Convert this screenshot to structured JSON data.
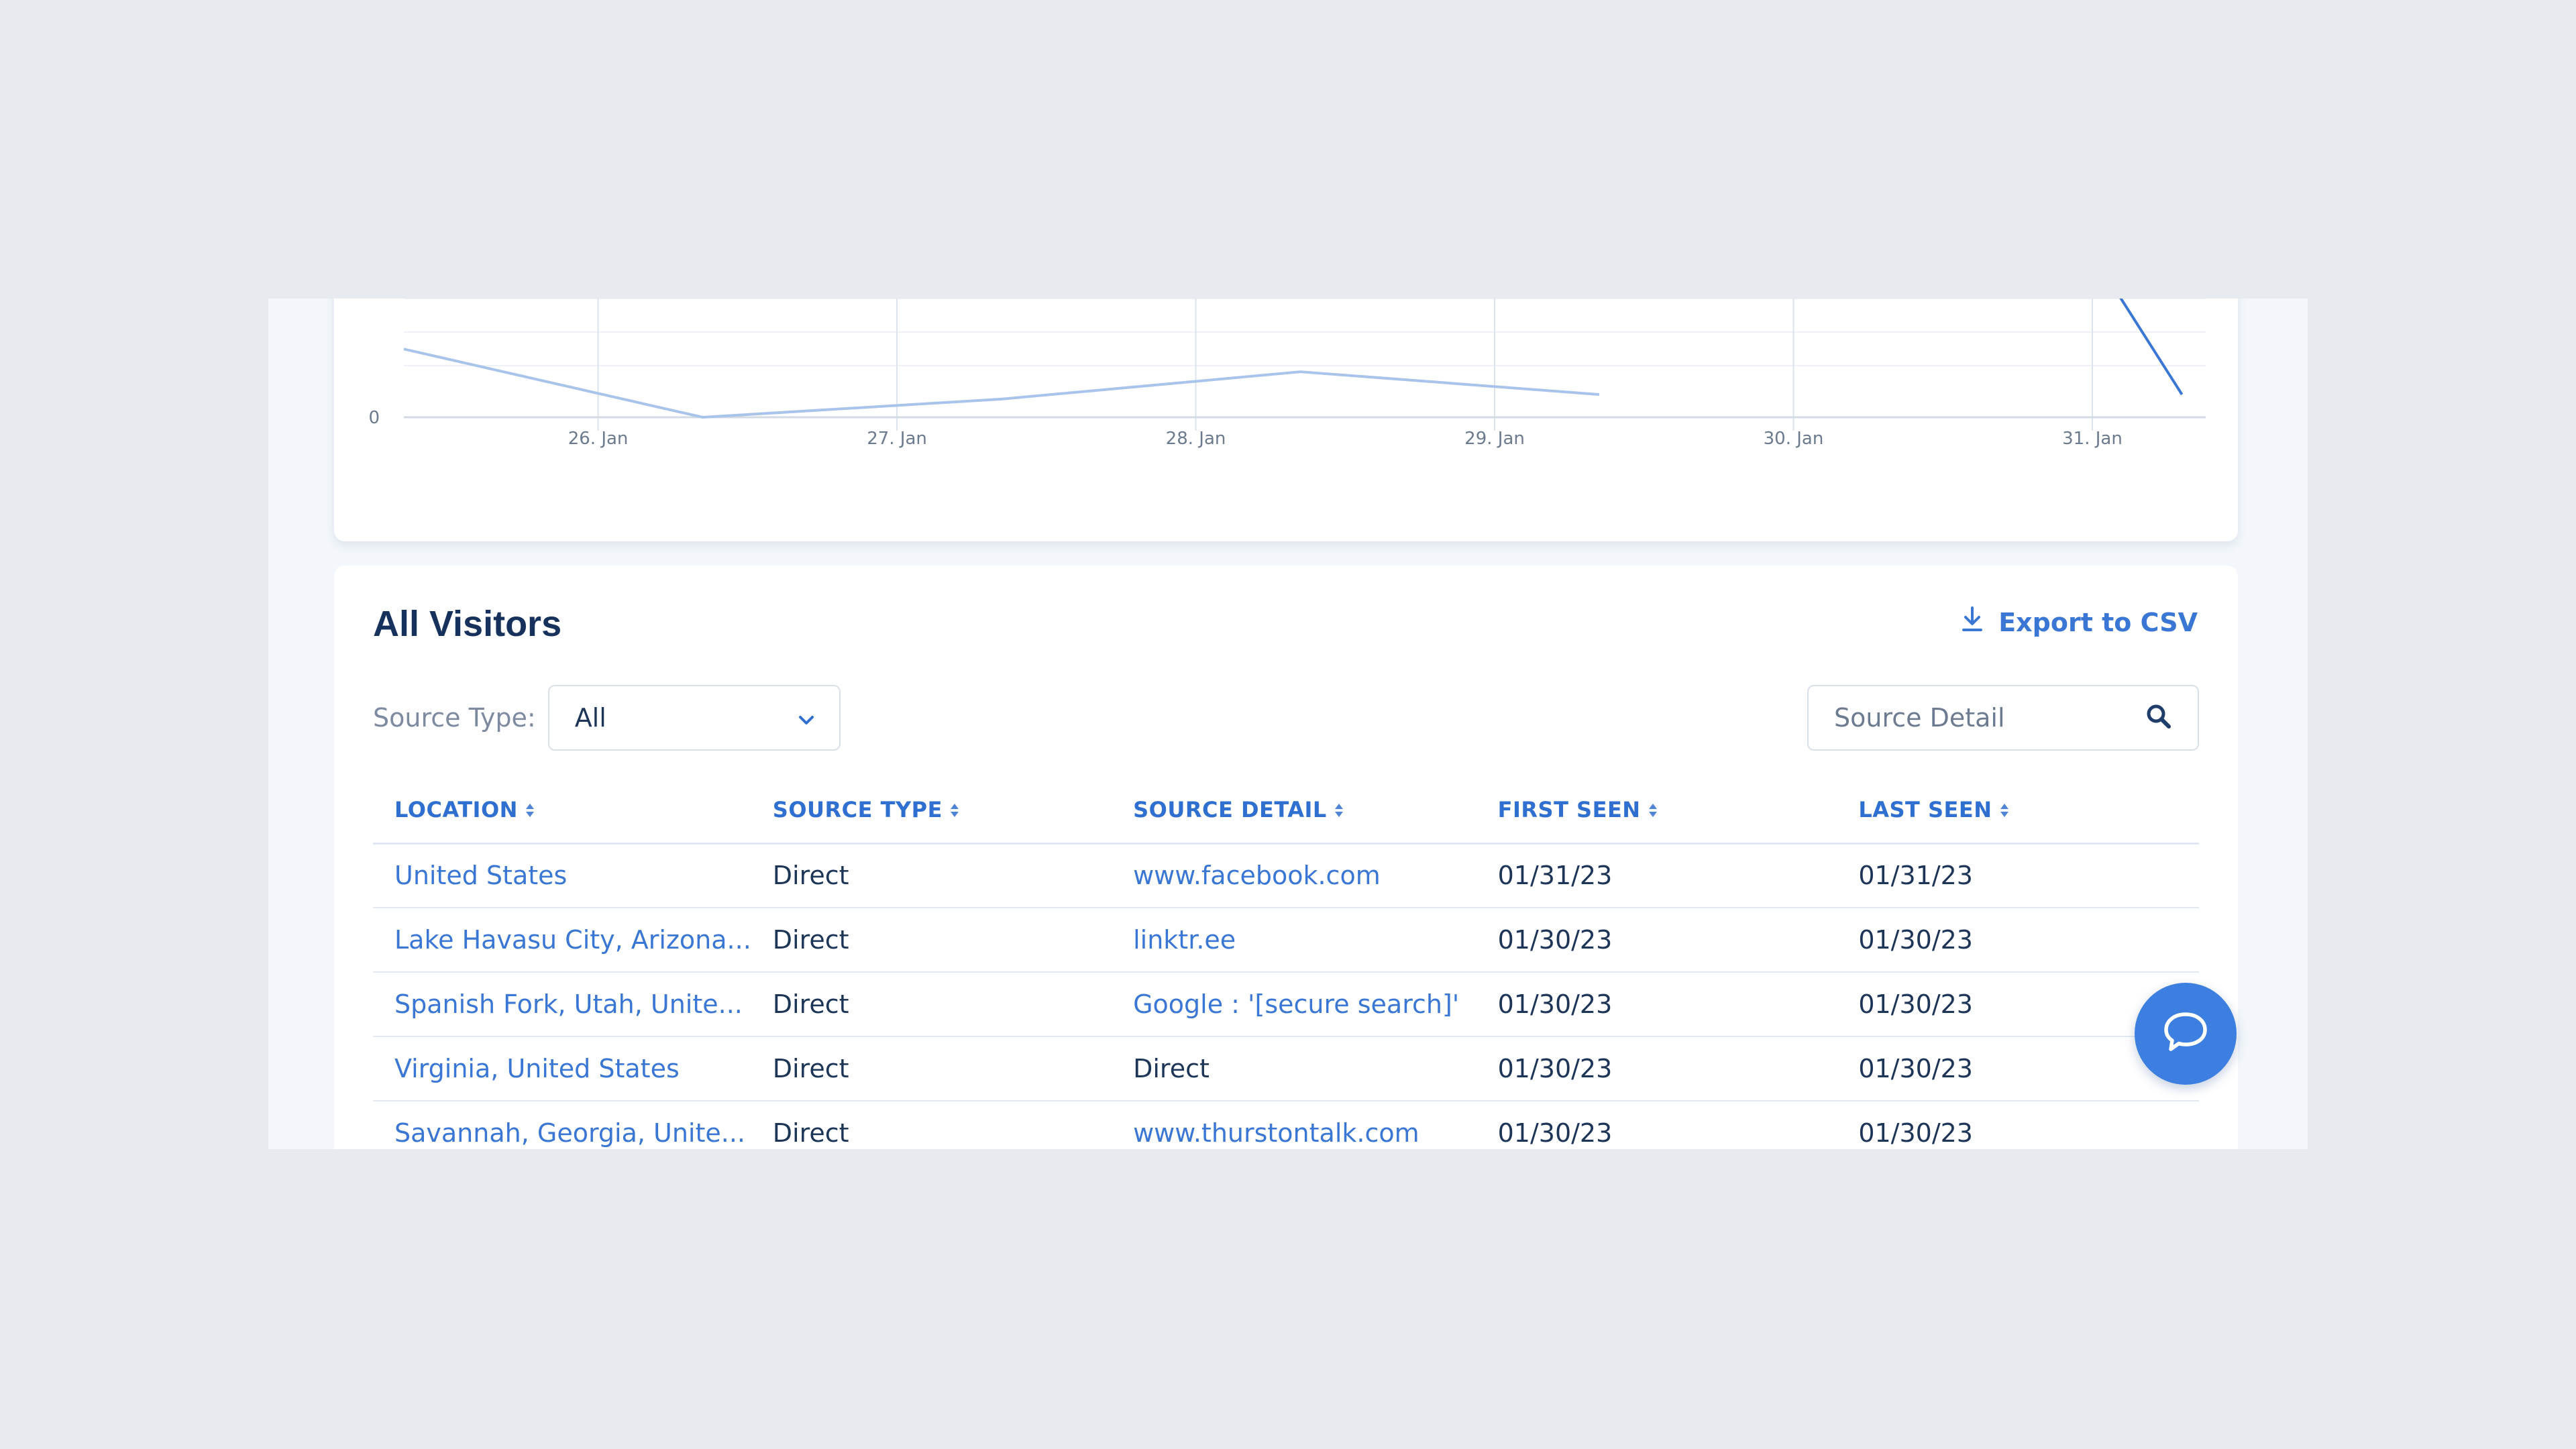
{
  "chart_data": {
    "type": "line",
    "categories": [
      "26. Jan",
      "27. Jan",
      "28. Jan",
      "29. Jan",
      "30. Jan",
      "31. Jan"
    ],
    "y_tick_labels": [
      "0"
    ],
    "grid": true,
    "series": [
      {
        "color": "#a9c4ea",
        "points": [
          [
            25.35,
            0.75
          ],
          [
            26.35,
            0.0
          ],
          [
            27.35,
            0.2
          ],
          [
            28.35,
            0.5
          ],
          [
            29.35,
            0.25
          ]
        ]
      },
      {
        "color": "#3a77d4",
        "points": [
          [
            31.0,
            1.8
          ],
          [
            31.3,
            0.25
          ]
        ]
      }
    ],
    "x_range": [
      25.35,
      31.33
    ],
    "y_range": [
      0,
      1.6
    ]
  },
  "table_card": {
    "title": "All Visitors",
    "export_label": "Export to CSV",
    "filter_label": "Source Type:",
    "filter_value": "All",
    "search_placeholder": "Source Detail"
  },
  "table": {
    "headers": [
      "LOCATION",
      "SOURCE TYPE",
      "SOURCE DETAIL",
      "FIRST SEEN",
      "LAST SEEN"
    ],
    "rows": [
      [
        "United States",
        "Direct",
        "www.facebook.com",
        "01/31/23",
        "01/31/23"
      ],
      [
        "Lake Havasu City, Arizona...",
        "Direct",
        "linktr.ee",
        "01/30/23",
        "01/30/23"
      ],
      [
        "Spanish Fork, Utah, Unite...",
        "Direct",
        "Google : '[secure search]'",
        "01/30/23",
        "01/30/23"
      ],
      [
        "Virginia, United States",
        "Direct",
        "Direct",
        "01/30/23",
        "01/30/23"
      ],
      [
        "Savannah, Georgia, Unite...",
        "Direct",
        "www.thurstontalk.com",
        "01/30/23",
        "01/30/23"
      ]
    ],
    "link_detail_rows": [
      0,
      1,
      2,
      4
    ]
  },
  "icons": {
    "export": "download-icon",
    "select": "chevron-down-icon",
    "search": "search-icon",
    "sort": "sort-icon",
    "chat": "chat-bubble-icon"
  },
  "colors": {
    "accent": "#3a77d4",
    "title": "#15315c",
    "text": "#1d3557"
  }
}
